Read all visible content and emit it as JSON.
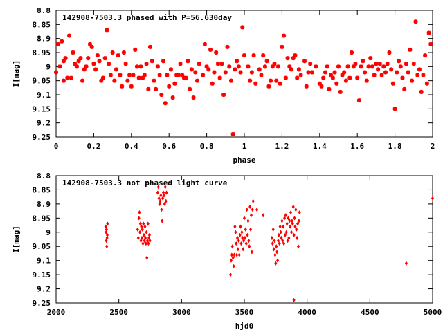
{
  "chart_data": [
    {
      "type": "scatter",
      "title": "142908-7503.3 phased with P=56.630day",
      "xlabel": "phase",
      "ylabel": "I[mag]",
      "xlim": [
        0,
        2
      ],
      "ylim": [
        9.25,
        8.8
      ],
      "y_inverted": true,
      "x_ticks": [
        "0",
        "0.2",
        "0.4",
        "0.6",
        "0.8",
        "1",
        "1.2",
        "1.4",
        "1.6",
        "1.8",
        "2"
      ],
      "y_ticks": [
        "8.8",
        "8.85",
        "8.9",
        "8.95",
        "9",
        "9.05",
        "9.1",
        "9.15",
        "9.2",
        "9.25"
      ],
      "grid": false,
      "marker": "star",
      "color": "#ff0000",
      "points": [
        [
          0.0,
          9.02
        ],
        [
          0.01,
          8.92
        ],
        [
          0.02,
          9.0
        ],
        [
          0.03,
          8.91
        ],
        [
          0.04,
          8.98
        ],
        [
          0.04,
          9.05
        ],
        [
          0.05,
          8.97
        ],
        [
          0.06,
          9.04
        ],
        [
          0.07,
          8.89
        ],
        [
          0.08,
          9.04
        ],
        [
          0.09,
          8.95
        ],
        [
          0.1,
          8.99
        ],
        [
          0.11,
          9.0
        ],
        [
          0.12,
          8.98
        ],
        [
          0.13,
          8.97
        ],
        [
          0.14,
          9.05
        ],
        [
          0.15,
          9.01
        ],
        [
          0.16,
          9.0
        ],
        [
          0.17,
          8.97
        ],
        [
          0.18,
          8.92
        ],
        [
          0.19,
          8.93
        ],
        [
          0.2,
          8.99
        ],
        [
          0.21,
          9.01
        ],
        [
          0.22,
          8.96
        ],
        [
          0.23,
          8.98
        ],
        [
          0.24,
          9.05
        ],
        [
          0.25,
          9.04
        ],
        [
          0.26,
          8.97
        ],
        [
          0.27,
          8.87
        ],
        [
          0.28,
          8.99
        ],
        [
          0.29,
          9.03
        ],
        [
          0.3,
          8.95
        ],
        [
          0.31,
          9.05
        ],
        [
          0.32,
          9.01
        ],
        [
          0.33,
          8.96
        ],
        [
          0.34,
          9.03
        ],
        [
          0.35,
          9.07
        ],
        [
          0.36,
          8.95
        ],
        [
          0.37,
          8.99
        ],
        [
          0.38,
          9.05
        ],
        [
          0.39,
          9.03
        ],
        [
          0.4,
          9.07
        ],
        [
          0.41,
          9.03
        ],
        [
          0.42,
          8.94
        ],
        [
          0.43,
          9.0
        ],
        [
          0.44,
          9.04
        ],
        [
          0.45,
          9.0
        ],
        [
          0.46,
          9.04
        ],
        [
          0.47,
          9.03
        ],
        [
          0.48,
          8.99
        ],
        [
          0.49,
          9.08
        ],
        [
          0.5,
          8.93
        ],
        [
          0.51,
          8.98
        ],
        [
          0.52,
          9.05
        ],
        [
          0.53,
          9.08
        ],
        [
          0.54,
          9.0
        ],
        [
          0.55,
          9.03
        ],
        [
          0.56,
          9.1
        ],
        [
          0.57,
          8.98
        ],
        [
          0.58,
          9.13
        ],
        [
          0.59,
          9.03
        ],
        [
          0.6,
          9.07
        ],
        [
          0.61,
          9.01
        ],
        [
          0.62,
          9.11
        ],
        [
          0.63,
          9.06
        ],
        [
          0.64,
          9.03
        ],
        [
          0.65,
          9.03
        ],
        [
          0.66,
          8.99
        ],
        [
          0.67,
          9.03
        ],
        [
          0.68,
          9.04
        ],
        [
          0.69,
          9.04
        ],
        [
          0.7,
          8.98
        ],
        [
          0.71,
          9.08
        ],
        [
          0.72,
          9.01
        ],
        [
          0.73,
          9.11
        ],
        [
          0.74,
          9.02
        ],
        [
          0.75,
          9.05
        ],
        [
          0.76,
          8.99
        ],
        [
          0.78,
          9.03
        ],
        [
          0.79,
          8.92
        ],
        [
          0.8,
          9.0
        ],
        [
          0.81,
          9.01
        ],
        [
          0.82,
          8.94
        ],
        [
          0.83,
          9.06
        ],
        [
          0.84,
          9.02
        ],
        [
          0.85,
          8.95
        ],
        [
          0.86,
          8.99
        ],
        [
          0.87,
          9.04
        ],
        [
          0.88,
          8.99
        ],
        [
          0.89,
          9.1
        ],
        [
          0.9,
          9.02
        ],
        [
          0.91,
          8.93
        ],
        [
          0.92,
          9.0
        ],
        [
          0.93,
          9.05
        ],
        [
          0.94,
          9.24
        ],
        [
          0.95,
          9.01
        ],
        [
          0.96,
          8.98
        ],
        [
          0.97,
          9.0
        ],
        [
          0.98,
          9.02
        ],
        [
          0.99,
          8.86
        ],
        [
          1.0,
          8.96
        ],
        [
          1.02,
          9.0
        ],
        [
          1.03,
          9.05
        ],
        [
          1.04,
          9.02
        ],
        [
          1.05,
          8.96
        ],
        [
          1.06,
          9.06
        ],
        [
          1.08,
          9.01
        ],
        [
          1.09,
          9.03
        ],
        [
          1.1,
          8.96
        ],
        [
          1.11,
          9.0
        ],
        [
          1.12,
          8.98
        ],
        [
          1.13,
          9.07
        ],
        [
          1.14,
          9.05
        ],
        [
          1.15,
          9.0
        ],
        [
          1.16,
          8.99
        ],
        [
          1.17,
          9.05
        ],
        [
          1.18,
          9.0
        ],
        [
          1.19,
          9.06
        ],
        [
          1.2,
          8.93
        ],
        [
          1.21,
          8.89
        ],
        [
          1.22,
          9.04
        ],
        [
          1.23,
          8.97
        ],
        [
          1.24,
          9.0
        ],
        [
          1.25,
          9.01
        ],
        [
          1.26,
          8.97
        ],
        [
          1.27,
          8.96
        ],
        [
          1.28,
          9.04
        ],
        [
          1.29,
          9.01
        ],
        [
          1.3,
          9.03
        ],
        [
          1.32,
          8.98
        ],
        [
          1.33,
          9.07
        ],
        [
          1.34,
          9.02
        ],
        [
          1.35,
          8.99
        ],
        [
          1.36,
          9.02
        ],
        [
          1.38,
          9.0
        ],
        [
          1.4,
          9.06
        ],
        [
          1.41,
          9.07
        ],
        [
          1.42,
          9.04
        ],
        [
          1.43,
          9.02
        ],
        [
          1.44,
          9.0
        ],
        [
          1.45,
          9.08
        ],
        [
          1.46,
          9.03
        ],
        [
          1.47,
          9.04
        ],
        [
          1.48,
          9.02
        ],
        [
          1.49,
          9.06
        ],
        [
          1.5,
          9.0
        ],
        [
          1.51,
          9.09
        ],
        [
          1.52,
          9.03
        ],
        [
          1.53,
          9.02
        ],
        [
          1.54,
          9.05
        ],
        [
          1.55,
          9.0
        ],
        [
          1.56,
          9.04
        ],
        [
          1.57,
          8.95
        ],
        [
          1.58,
          9.0
        ],
        [
          1.59,
          8.99
        ],
        [
          1.6,
          9.04
        ],
        [
          1.61,
          9.12
        ],
        [
          1.62,
          9.0
        ],
        [
          1.63,
          8.98
        ],
        [
          1.64,
          9.02
        ],
        [
          1.65,
          9.05
        ],
        [
          1.66,
          9.0
        ],
        [
          1.67,
          8.97
        ],
        [
          1.68,
          9.0
        ],
        [
          1.69,
          9.03
        ],
        [
          1.7,
          8.99
        ],
        [
          1.71,
          9.01
        ],
        [
          1.72,
          8.99
        ],
        [
          1.73,
          9.03
        ],
        [
          1.74,
          9.0
        ],
        [
          1.75,
          9.02
        ],
        [
          1.76,
          8.99
        ],
        [
          1.77,
          8.95
        ],
        [
          1.78,
          9.01
        ],
        [
          1.79,
          9.06
        ],
        [
          1.8,
          9.15
        ],
        [
          1.81,
          9.02
        ],
        [
          1.82,
          8.98
        ],
        [
          1.83,
          9.0
        ],
        [
          1.84,
          9.04
        ],
        [
          1.85,
          9.08
        ],
        [
          1.86,
          8.99
        ],
        [
          1.87,
          9.02
        ],
        [
          1.88,
          8.94
        ],
        [
          1.89,
          9.05
        ],
        [
          1.9,
          8.99
        ],
        [
          1.91,
          8.84
        ],
        [
          1.92,
          9.03
        ],
        [
          1.93,
          9.01
        ],
        [
          1.94,
          9.09
        ],
        [
          1.95,
          9.03
        ],
        [
          1.96,
          8.96
        ],
        [
          1.97,
          9.06
        ],
        [
          1.98,
          8.88
        ],
        [
          1.99,
          8.92
        ]
      ]
    },
    {
      "type": "scatter",
      "title": "142908-7503.3 not phased light curve",
      "xlabel": "hjd0",
      "ylabel": "I[mag]",
      "xlim": [
        2000,
        5000
      ],
      "ylim": [
        9.25,
        8.8
      ],
      "y_inverted": true,
      "x_ticks": [
        "2000",
        "2500",
        "3000",
        "3500",
        "4000",
        "4500",
        "5000"
      ],
      "y_ticks": [
        "8.8",
        "8.85",
        "8.9",
        "8.95",
        "9",
        "9.05",
        "9.1",
        "9.15",
        "9.2",
        "9.25"
      ],
      "grid": false,
      "marker": "diamond",
      "color": "#ff0000",
      "points": [
        [
          2395,
          8.98
        ],
        [
          2398,
          9.0
        ],
        [
          2400,
          9.03
        ],
        [
          2402,
          8.99
        ],
        [
          2404,
          9.05
        ],
        [
          2406,
          9.02
        ],
        [
          2408,
          9.01
        ],
        [
          2410,
          8.97
        ],
        [
          2650,
          8.99
        ],
        [
          2655,
          9.02
        ],
        [
          2660,
          8.95
        ],
        [
          2664,
          8.93
        ],
        [
          2668,
          9.0
        ],
        [
          2672,
          8.97
        ],
        [
          2676,
          9.03
        ],
        [
          2680,
          8.98
        ],
        [
          2684,
          9.02
        ],
        [
          2688,
          8.99
        ],
        [
          2692,
          9.04
        ],
        [
          2696,
          8.97
        ],
        [
          2700,
          9.01
        ],
        [
          2704,
          9.03
        ],
        [
          2708,
          8.98
        ],
        [
          2712,
          9.02
        ],
        [
          2716,
          9.04
        ],
        [
          2720,
          9.0
        ],
        [
          2724,
          9.09
        ],
        [
          2728,
          9.03
        ],
        [
          2732,
          8.97
        ],
        [
          2736,
          9.04
        ],
        [
          2740,
          9.02
        ],
        [
          2744,
          9.01
        ],
        [
          2748,
          9.03
        ],
        [
          2810,
          8.86
        ],
        [
          2815,
          8.84
        ],
        [
          2820,
          8.88
        ],
        [
          2825,
          8.9
        ],
        [
          2830,
          8.89
        ],
        [
          2835,
          8.87
        ],
        [
          2840,
          8.92
        ],
        [
          2845,
          8.96
        ],
        [
          2850,
          8.88
        ],
        [
          2855,
          8.86
        ],
        [
          2860,
          8.87
        ],
        [
          2865,
          8.9
        ],
        [
          2870,
          8.84
        ],
        [
          2875,
          8.89
        ],
        [
          2880,
          8.86
        ],
        [
          3390,
          9.15
        ],
        [
          3395,
          9.1
        ],
        [
          3400,
          9.08
        ],
        [
          3405,
          9.05
        ],
        [
          3410,
          9.09
        ],
        [
          3415,
          9.12
        ],
        [
          3420,
          9.08
        ],
        [
          3425,
          8.98
        ],
        [
          3430,
          9.0
        ],
        [
          3435,
          9.04
        ],
        [
          3440,
          9.08
        ],
        [
          3445,
          9.02
        ],
        [
          3450,
          9.06
        ],
        [
          3455,
          9.03
        ],
        [
          3460,
          9.08
        ],
        [
          3465,
          9.01
        ],
        [
          3470,
          8.98
        ],
        [
          3475,
          9.04
        ],
        [
          3480,
          9.0
        ],
        [
          3485,
          9.02
        ],
        [
          3490,
          9.06
        ],
        [
          3495,
          9.03
        ],
        [
          3500,
          8.95
        ],
        [
          3505,
          9.02
        ],
        [
          3510,
          8.99
        ],
        [
          3515,
          9.04
        ],
        [
          3520,
          8.92
        ],
        [
          3525,
          9.01
        ],
        [
          3530,
          8.96
        ],
        [
          3535,
          9.03
        ],
        [
          3540,
          9.05
        ],
        [
          3545,
          8.91
        ],
        [
          3550,
          8.99
        ],
        [
          3555,
          8.94
        ],
        [
          3560,
          9.07
        ],
        [
          3565,
          8.92
        ],
        [
          3570,
          8.89
        ],
        [
          3600,
          8.92
        ],
        [
          3650,
          8.94
        ],
        [
          3720,
          9.02
        ],
        [
          3725,
          9.04
        ],
        [
          3730,
          8.99
        ],
        [
          3735,
          9.06
        ],
        [
          3740,
          9.03
        ],
        [
          3745,
          9.08
        ],
        [
          3750,
          9.11
        ],
        [
          3755,
          9.05
        ],
        [
          3760,
          9.07
        ],
        [
          3765,
          9.1
        ],
        [
          3770,
          9.03
        ],
        [
          3775,
          9.01
        ],
        [
          3780,
          9.04
        ],
        [
          3785,
          8.98
        ],
        [
          3790,
          9.0
        ],
        [
          3795,
          9.02
        ],
        [
          3800,
          8.96
        ],
        [
          3805,
          9.03
        ],
        [
          3810,
          8.98
        ],
        [
          3815,
          9.04
        ],
        [
          3820,
          8.95
        ],
        [
          3825,
          9.01
        ],
        [
          3830,
          8.94
        ],
        [
          3835,
          9.0
        ],
        [
          3840,
          8.97
        ],
        [
          3845,
          9.03
        ],
        [
          3850,
          8.95
        ],
        [
          3855,
          9.02
        ],
        [
          3860,
          8.96
        ],
        [
          3865,
          8.98
        ],
        [
          3870,
          8.93
        ],
        [
          3875,
          9.0
        ],
        [
          3880,
          8.96
        ],
        [
          3885,
          8.97
        ],
        [
          3890,
          8.91
        ],
        [
          3895,
          9.01
        ],
        [
          3900,
          8.95
        ],
        [
          3905,
          8.98
        ],
        [
          3910,
          8.92
        ],
        [
          3915,
          8.99
        ],
        [
          3920,
          9.02
        ],
        [
          3925,
          8.97
        ],
        [
          3930,
          9.05
        ],
        [
          3935,
          8.96
        ],
        [
          3940,
          8.93
        ],
        [
          3895,
          9.24
        ],
        [
          4790,
          9.11
        ],
        [
          5000,
          8.88
        ]
      ]
    }
  ]
}
